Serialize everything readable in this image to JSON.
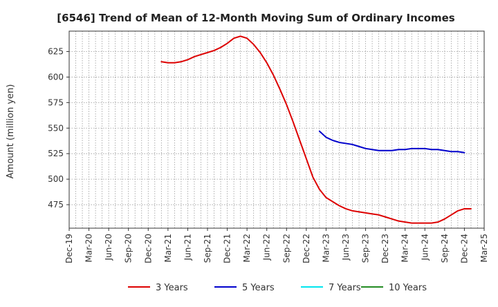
{
  "chart_data": {
    "type": "line",
    "title": "[6546]  Trend of Mean of 12-Month Moving Sum of Ordinary Incomes",
    "xlabel": "",
    "ylabel": "Amount (million yen)",
    "ylim": [
      452,
      645
    ],
    "yticks": [
      475,
      500,
      525,
      550,
      575,
      600,
      625
    ],
    "xlim": [
      0,
      63
    ],
    "xticks": [
      {
        "label": "Dec-19",
        "pos": 0
      },
      {
        "label": "Mar-20",
        "pos": 3
      },
      {
        "label": "Jun-20",
        "pos": 6
      },
      {
        "label": "Sep-20",
        "pos": 9
      },
      {
        "label": "Dec-20",
        "pos": 12
      },
      {
        "label": "Mar-21",
        "pos": 15
      },
      {
        "label": "Jun-21",
        "pos": 18
      },
      {
        "label": "Sep-21",
        "pos": 21
      },
      {
        "label": "Dec-21",
        "pos": 24
      },
      {
        "label": "Mar-22",
        "pos": 27
      },
      {
        "label": "Jun-22",
        "pos": 30
      },
      {
        "label": "Sep-22",
        "pos": 33
      },
      {
        "label": "Dec-22",
        "pos": 36
      },
      {
        "label": "Mar-23",
        "pos": 39
      },
      {
        "label": "Jun-23",
        "pos": 42
      },
      {
        "label": "Sep-23",
        "pos": 45
      },
      {
        "label": "Dec-23",
        "pos": 48
      },
      {
        "label": "Mar-24",
        "pos": 51
      },
      {
        "label": "Jun-24",
        "pos": 54
      },
      {
        "label": "Sep-24",
        "pos": 57
      },
      {
        "label": "Dec-24",
        "pos": 60
      },
      {
        "label": "Mar-25",
        "pos": 63
      }
    ],
    "grid": true,
    "legend_position": "bottom",
    "series": [
      {
        "name": "3 Years",
        "color": "#dd0000",
        "start": 14,
        "values": [
          615,
          614,
          614,
          615,
          617,
          620,
          622,
          624,
          626,
          629,
          633,
          638,
          640,
          638,
          632,
          624,
          614,
          602,
          588,
          573,
          556,
          538,
          520,
          502,
          490,
          482,
          478,
          474,
          471,
          469,
          468,
          467,
          466,
          465,
          463,
          461,
          459,
          458,
          457,
          457,
          457,
          457,
          458,
          461,
          465,
          469,
          471,
          471
        ]
      },
      {
        "name": "5 Years",
        "color": "#0000cc",
        "start": 38,
        "values": [
          547,
          541,
          538,
          536,
          535,
          534,
          532,
          530,
          529,
          528,
          528,
          528,
          529,
          529,
          530,
          530,
          530,
          529,
          529,
          528,
          527,
          527,
          526
        ]
      },
      {
        "name": "7 Years",
        "color": "#00e5ee",
        "start": 0,
        "values": []
      },
      {
        "name": "10 Years",
        "color": "#228b22",
        "start": 0,
        "values": []
      }
    ]
  }
}
